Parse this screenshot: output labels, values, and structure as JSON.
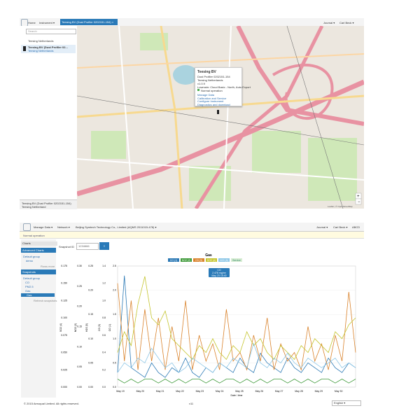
{
  "top": {
    "nav": {
      "home": "Home",
      "instrument": "Instrument",
      "tab": "Teesing BV (Dust Profiler 0202151-154)",
      "journal": "Journal",
      "user": "Carl Beck"
    },
    "sidebar": {
      "search": "Search",
      "items": [
        {
          "title": "Teesing Netherlands"
        },
        {
          "title": "Teesing BV (Dust Profiler 02...",
          "subtitle": "Teesing Netherlands"
        }
      ],
      "footer_title": "Teesing BV (Dust Profiler 0202151-154)",
      "footer_subtitle": "Teesing Netherland"
    },
    "popup": {
      "title": "Teesing BV",
      "lines": [
        "Dust Profiler 0202151-154",
        "Teesing Netherlands",
        "v1.0.9",
        "Lowmain: Cloud Basic - North, Auto Export"
      ],
      "status": "Normal operation",
      "links": [
        "Manage Data",
        "Calibration and Service",
        "Configure Instrument",
        "Diagnostics and download"
      ]
    },
    "attribution": "Leaflet | © OpenStreetMap"
  },
  "bottom": {
    "nav": {
      "manage": "Manage Data",
      "network": "Network",
      "site": "Beijing Symtech Technology Co., Limited (AQMS 2011015-478)",
      "journal": "Journal",
      "user": "Carl Beck",
      "extra": "ABCD"
    },
    "status": "Normal operation",
    "sidebar": {
      "charts": "Charts",
      "advanced": "Advanced Charts",
      "adv_group": "Default group",
      "adv_items": [
        "demo"
      ],
      "adv_more": "Rows more",
      "snapshots": "Snapshots",
      "snap_group": "Default group",
      "snap_items": [
        "CO",
        "PM2.5",
        "Gas",
        "Gas"
      ],
      "refresh": "Refresh snapshots"
    },
    "snapshot_label": "Snapshot ID",
    "snapshot_value": "1234666",
    "chart": {
      "type": "line",
      "title": "Gas",
      "x_label": "Date / time",
      "service": "Service",
      "xticks": [
        "May 19",
        "May 20",
        "May 21",
        "May 22",
        "May 23",
        "May 24",
        "May 25",
        "May 26",
        "May 27",
        "May 28",
        "May 29",
        "May 30"
      ],
      "axes": [
        {
          "label": "SO2 (4)",
          "ylim": [
            0,
            0.175
          ],
          "yticks": [
            {
              "value": 0,
              "label": "0.000"
            },
            0.025,
            {
              "value": 0.05,
              "label": "0.050"
            },
            0.075,
            {
              "value": 0.1,
              "label": "0.100"
            },
            0.125,
            {
              "value": 0.15,
              "label": "0.150"
            },
            0.175
          ]
        },
        {
          "label": "NO2 (2)",
          "ylim": [
            0,
            0.3
          ],
          "yticks": [
            {
              "value": 0,
              "label": "0.00"
            },
            0.05,
            {
              "value": 0.1,
              "label": "0.10"
            },
            0.15,
            {
              "value": 0.2,
              "label": "0.20"
            },
            0.25,
            {
              "value": 0.3,
              "label": "0.30"
            }
          ]
        },
        {
          "label": "H2S (5)",
          "ylim": [
            0,
            0.25
          ],
          "yticks": [
            {
              "value": 0,
              "label": "0.00"
            },
            0.05,
            {
              "value": 0.1,
              "label": "0.10"
            },
            0.15,
            {
              "value": 0.2,
              "label": "0.20"
            },
            0.25
          ]
        },
        {
          "label": "O3 (3)",
          "ylim": [
            0,
            1.4
          ],
          "yticks": [
            {
              "value": 0,
              "label": "0.0"
            },
            0.2,
            0.4,
            0.6,
            0.8,
            {
              "value": 1,
              "label": "1.0"
            },
            1.2,
            1.4
          ]
        },
        {
          "label": "CO (1)",
          "ylim": [
            0,
            2.5
          ],
          "yticks": [
            {
              "value": 0,
              "label": "0.0"
            },
            0.5,
            {
              "value": 1,
              "label": "1.0"
            },
            1.5,
            {
              "value": 2,
              "label": "2.0"
            },
            2.5
          ]
        }
      ],
      "series": [
        {
          "name": "CO (1)",
          "color": "#2a78b4",
          "axis": 4,
          "values": [
            0.3,
            2.3,
            0.4,
            0.3,
            0.2,
            0.5,
            0.3,
            0.2,
            0.4,
            0.3,
            0.6,
            0.3,
            0.2,
            0.4,
            0.3,
            0.5,
            0.4,
            0.3,
            0.6,
            0.4,
            0.3,
            0.7,
            0.5,
            0.4,
            0.3,
            0.6,
            0.4,
            0.3,
            0.5,
            0.4,
            0.3,
            0.6,
            0.4,
            0.3,
            0.5,
            0.4
          ]
        },
        {
          "name": "NO2 (2)",
          "color": "#3f9a3a",
          "axis": 1,
          "values": [
            0.02,
            0.01,
            0.02,
            0.01,
            0.02,
            0.02,
            0.01,
            0.02,
            0.01,
            0.02,
            0.01,
            0.02,
            0.02,
            0.01,
            0.02,
            0.01,
            0.02,
            0.02,
            0.01,
            0.02,
            0.01,
            0.02,
            0.01,
            0.02,
            0.02,
            0.01,
            0.02,
            0.01,
            0.02,
            0.01,
            0.02,
            0.02,
            0.01,
            0.02,
            0.01,
            0.02
          ]
        },
        {
          "name": "O3 (3)",
          "color": "#d9822b",
          "axis": 3,
          "values": [
            1.2,
            0.3,
            1.0,
            0.2,
            0.9,
            0.3,
            0.8,
            0.2,
            0.7,
            0.3,
            1.0,
            0.2,
            0.6,
            0.3,
            0.5,
            0.2,
            0.9,
            0.3,
            0.4,
            0.2,
            0.6,
            0.3,
            0.8,
            0.2,
            0.5,
            0.3,
            0.4,
            0.2,
            0.7,
            0.3,
            0.5,
            0.2,
            0.6,
            0.3,
            1.1,
            0.4
          ]
        },
        {
          "name": "SO2 (4)",
          "color": "#c4c42c",
          "axis": 0,
          "values": [
            0.05,
            0.08,
            0.06,
            0.12,
            0.16,
            0.1,
            0.09,
            0.11,
            0.07,
            0.06,
            0.05,
            0.04,
            0.06,
            0.05,
            0.07,
            0.05,
            0.04,
            0.06,
            0.05,
            0.08,
            0.06,
            0.07,
            0.05,
            0.04,
            0.06,
            0.05,
            0.04,
            0.06,
            0.05,
            0.07,
            0.06,
            0.05,
            0.08,
            0.07,
            0.09,
            0.1
          ]
        },
        {
          "name": "H2S (5)",
          "color": "#8cc6e6",
          "axis": 2,
          "values": [
            0.03,
            0.05,
            0.04,
            0.06,
            0.05,
            0.08,
            0.06,
            0.04,
            0.05,
            0.03,
            0.04,
            0.06,
            0.05,
            0.04,
            0.03,
            0.05,
            0.04,
            0.06,
            0.05,
            0.04,
            0.09,
            0.05,
            0.04,
            0.06,
            0.05,
            0.07,
            0.05,
            0.04,
            0.06,
            0.05,
            0.04,
            0.05,
            0.06,
            0.04,
            0.05,
            0.04
          ]
        }
      ],
      "tooltip": [
        "CO",
        "2.478 mg/m³",
        "May 23 15:40"
      ]
    },
    "footer": {
      "copyright": "© 2015 Aeroqual Limited. All rights reserved.",
      "version": "v11",
      "language": "English"
    }
  }
}
